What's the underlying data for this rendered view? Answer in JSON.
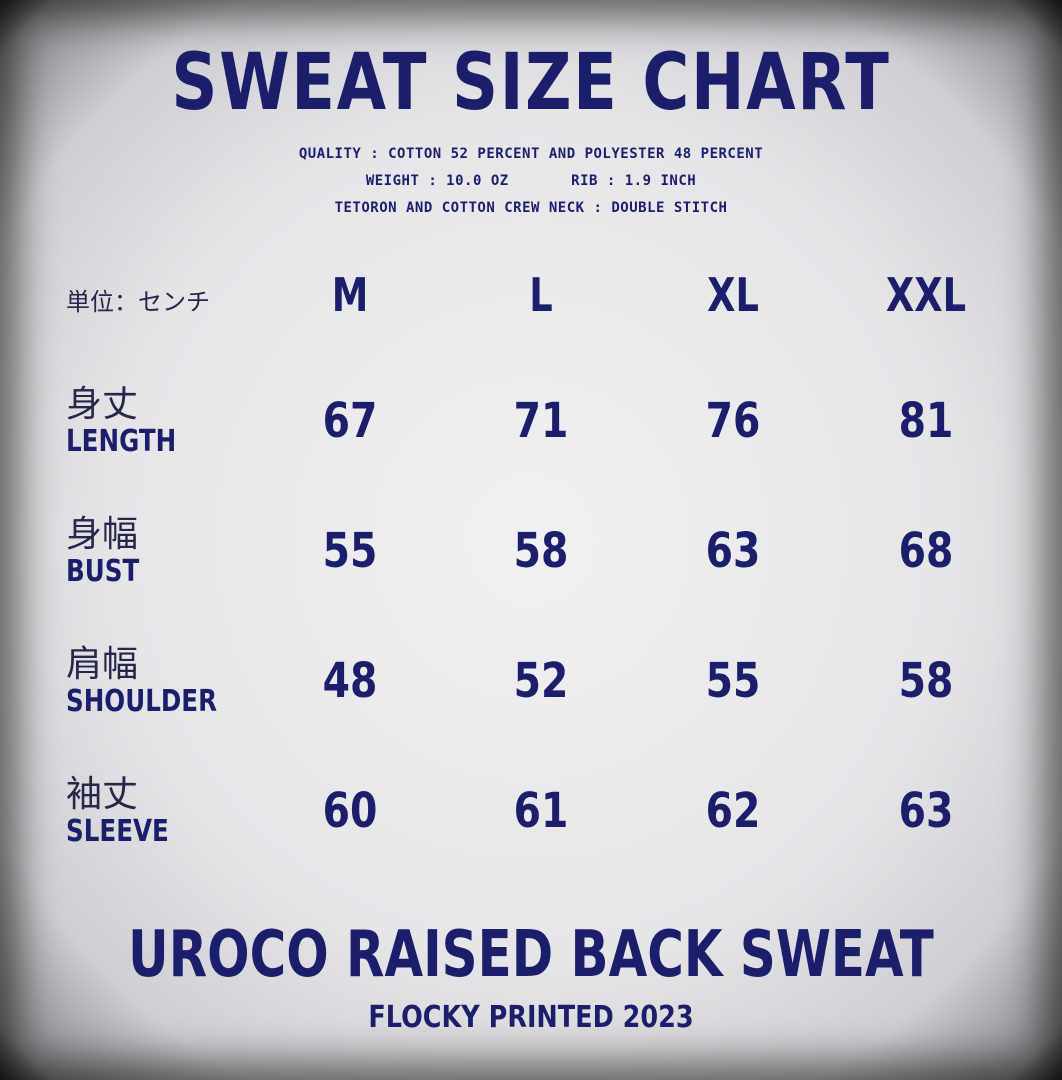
{
  "title": "SWEAT SIZE CHART",
  "specs": [
    "QUALITY : COTTON 52 PERCENT AND POLYESTER 48 PERCENT",
    "WEIGHT : 10.0 OZ       RIB : 1.9 INCH",
    "TETORON AND COTTON CREW NECK : DOUBLE STITCH"
  ],
  "unit_label": "単位：センチ",
  "sizes": [
    "M",
    "L",
    "XL",
    "XXL"
  ],
  "rows": [
    {
      "jp": "身丈",
      "en": "LENGTH",
      "values": [
        "67",
        "71",
        "76",
        "81"
      ]
    },
    {
      "jp": "身幅",
      "en": "BUST",
      "values": [
        "55",
        "58",
        "63",
        "68"
      ]
    },
    {
      "jp": "肩幅",
      "en": "SHOULDER",
      "values": [
        "48",
        "52",
        "55",
        "58"
      ]
    },
    {
      "jp": "袖丈",
      "en": "SLEEVE",
      "values": [
        "60",
        "61",
        "62",
        "63"
      ]
    }
  ],
  "footer": {
    "product": "UROCO RAISED BACK SWEAT",
    "note": "FLOCKY PRINTED 2023"
  },
  "colors": {
    "text": "#1b1f6b",
    "background": "#ececee"
  }
}
